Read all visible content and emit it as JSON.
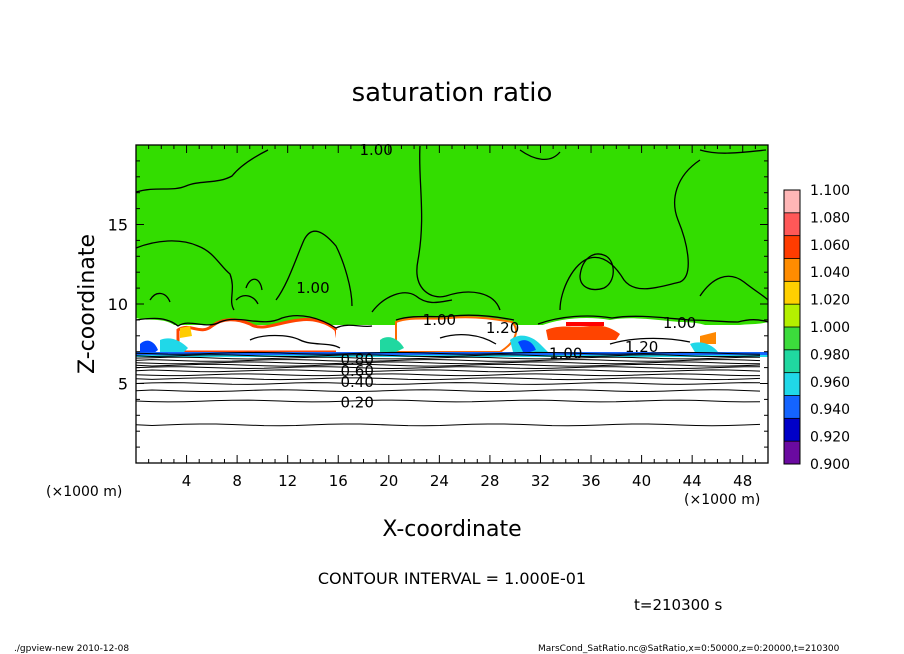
{
  "chart_data": {
    "type": "heatmap",
    "title": "saturation ratio",
    "xlabel": "X-coordinate",
    "ylabel": "Z-coordinate",
    "x_unit_left": "(×1000 m)",
    "x_unit_right": "(×1000 m)",
    "xlim": [
      0,
      50
    ],
    "ylim": [
      0,
      20
    ],
    "x_ticks": [
      4,
      8,
      12,
      16,
      20,
      24,
      28,
      32,
      36,
      40,
      44,
      48
    ],
    "y_ticks": [
      5,
      10,
      15
    ],
    "colorbar": {
      "levels": [
        "1.100",
        "1.080",
        "1.060",
        "1.040",
        "1.020",
        "1.000",
        "0.980",
        "0.960",
        "0.940",
        "0.920",
        "0.900"
      ],
      "colors": [
        "#ffb6b6",
        "#ff5858",
        "#ff3c00",
        "#ff8c00",
        "#ffd000",
        "#b4f000",
        "#3cdc3c",
        "#20d8a0",
        "#20d8e8",
        "#1464ff",
        "#0000c8",
        "#6a0aa0"
      ]
    },
    "contour_labels": [
      {
        "text": "1.00",
        "x": 19.0,
        "z": 19.7
      },
      {
        "text": "1.00",
        "x": 14.0,
        "z": 11.0
      },
      {
        "text": "1.00",
        "x": 24.0,
        "z": 9.0
      },
      {
        "text": "1.20",
        "x": 29.0,
        "z": 8.5
      },
      {
        "text": "1.00",
        "x": 34.0,
        "z": 6.9
      },
      {
        "text": "1.20",
        "x": 40.0,
        "z": 7.3
      },
      {
        "text": "1.00",
        "x": 43.0,
        "z": 8.8
      },
      {
        "text": "0.80",
        "x": 17.5,
        "z": 6.5
      },
      {
        "text": "0.60",
        "x": 17.5,
        "z": 5.8
      },
      {
        "text": "0.40",
        "x": 17.5,
        "z": 5.1
      },
      {
        "text": "0.20",
        "x": 17.5,
        "z": 3.8
      }
    ],
    "contour_lines_z": [
      6.9,
      6.75,
      6.6,
      6.45,
      6.3,
      6.15,
      6.0,
      5.8,
      5.55,
      5.3,
      5.0,
      4.55,
      3.9,
      2.4
    ],
    "contour_interval_text": "CONTOUR INTERVAL = 1.000E-01",
    "time_text": "t=210300 s"
  },
  "footer": {
    "left": "./gpview-new   2010-12-08",
    "right": "MarsCond_SatRatio.nc@SatRatio,x=0:50000,z=0:20000,t=210300"
  }
}
